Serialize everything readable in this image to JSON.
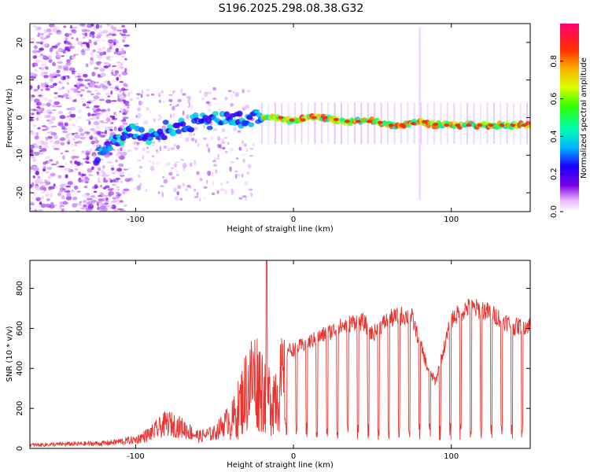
{
  "title": "S196.2025.298.08.38.G32",
  "chart_data": [
    {
      "type": "heatmap",
      "name": "spectrogram",
      "xlabel": "Height of straight line (km)",
      "ylabel": "Frequency (Hz)",
      "xlim": [
        -167,
        150
      ],
      "ylim": [
        -25,
        25
      ],
      "xticks": [
        -100,
        0,
        100
      ],
      "yticks": [
        -20,
        -10,
        0,
        10,
        20
      ],
      "ridge": {
        "x": [
          -120,
          -110,
          -100,
          -90,
          -80,
          -70,
          -60,
          -50,
          -40,
          -30,
          -25,
          -20,
          -10,
          0,
          10,
          20,
          30,
          40,
          50,
          60,
          70,
          80,
          90,
          100,
          110,
          120,
          130,
          140,
          150
        ],
        "y": [
          -9,
          -5,
          -4,
          -5,
          -3,
          -2,
          -1,
          -1,
          0,
          -1,
          0,
          0,
          0,
          -1,
          0,
          0,
          -1,
          -1,
          -1,
          -2,
          -2,
          -1,
          -2,
          -2,
          -2,
          -2,
          -2,
          -2,
          -2
        ]
      },
      "colorbar": {
        "label": "Normalized spectral amplitude",
        "range": [
          0,
          1
        ],
        "ticks": [
          0.0,
          0.2,
          0.4,
          0.6,
          0.8
        ]
      }
    },
    {
      "type": "line",
      "name": "snr",
      "xlabel": "Height of straight line (km)",
      "ylabel": "SNR (10 * v/v)",
      "xlim": [
        -167,
        150
      ],
      "ylim": [
        0,
        940
      ],
      "xticks": [
        -100,
        0,
        100
      ],
      "yticks": [
        0,
        200,
        400,
        600,
        800
      ],
      "color": "#e8332f",
      "envelope": {
        "x": [
          -167,
          -120,
          -100,
          -90,
          -80,
          -70,
          -60,
          -50,
          -40,
          -35,
          -30,
          -25,
          -20,
          -15,
          -10,
          -5,
          0,
          10,
          20,
          30,
          40,
          45,
          50,
          60,
          70,
          75,
          80,
          85,
          90,
          100,
          110,
          120,
          130,
          140,
          150
        ],
        "y": [
          20,
          30,
          50,
          90,
          150,
          120,
          70,
          90,
          180,
          300,
          450,
          550,
          480,
          380,
          450,
          520,
          520,
          560,
          600,
          640,
          670,
          660,
          600,
          680,
          700,
          690,
          560,
          420,
          350,
          680,
          740,
          730,
          690,
          640,
          650
        ]
      },
      "peak": {
        "x": -17,
        "y": 940
      }
    }
  ]
}
